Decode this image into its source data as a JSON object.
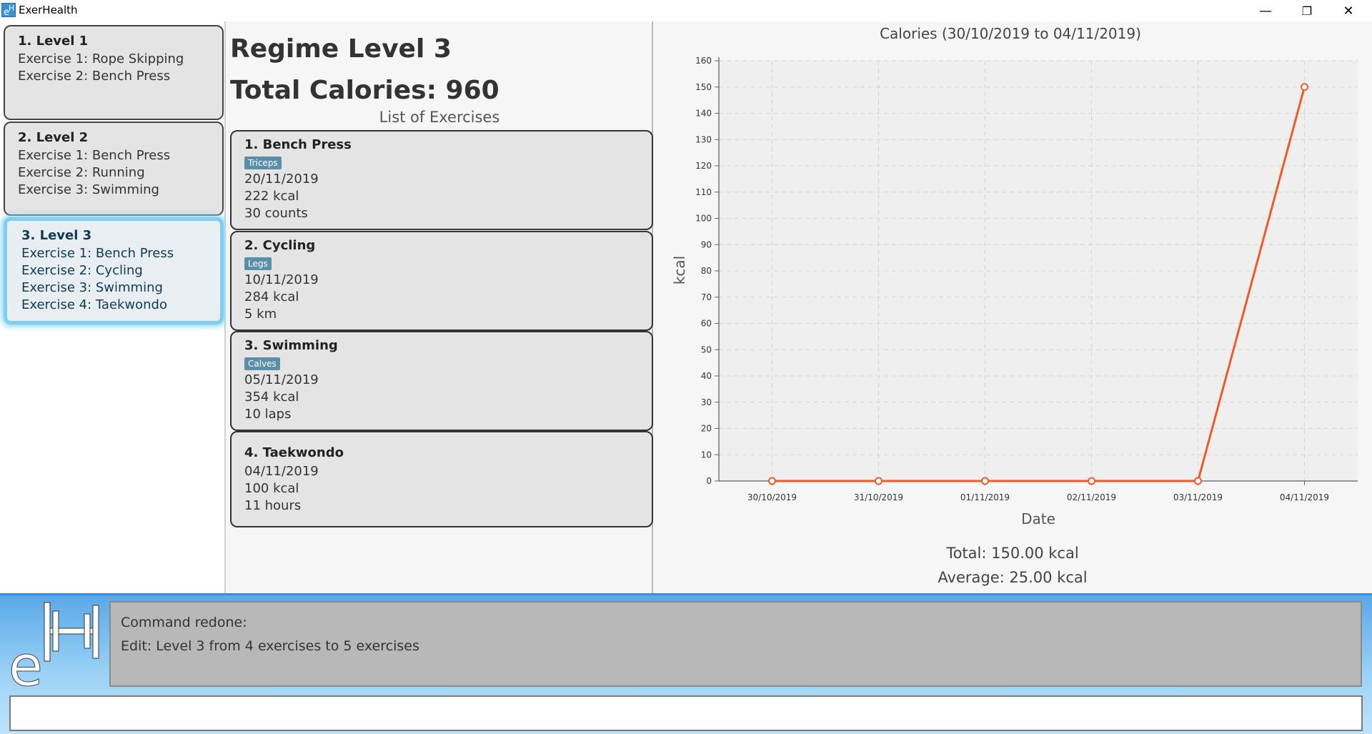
{
  "window": {
    "title": "ExerHealth",
    "minimize": "—",
    "restore": "❐",
    "close": "✕"
  },
  "regimes": [
    {
      "title": "1.  Level 1",
      "exercises": [
        "Exercise 1: Rope Skipping",
        "Exercise 2: Bench Press"
      ]
    },
    {
      "title": "2.  Level 2",
      "exercises": [
        "Exercise 1: Bench Press",
        "Exercise 2: Running",
        "Exercise 3: Swimming"
      ]
    },
    {
      "title": "3.  Level 3",
      "exercises": [
        "Exercise 1: Bench Press",
        "Exercise 2: Cycling",
        "Exercise 3: Swimming",
        "Exercise 4: Taekwondo"
      ],
      "selected": true
    }
  ],
  "detail": {
    "regime_name": "Regime Level 3",
    "total_calories": "Total Calories: 960",
    "list_header": "List of Exercises",
    "exercises": [
      {
        "title": "1.  Bench Press",
        "tag": "Triceps",
        "date": "20/11/2019",
        "calories": "222 kcal",
        "quantity": "30 counts"
      },
      {
        "title": "2.  Cycling",
        "tag": "Legs",
        "date": "10/11/2019",
        "calories": "284 kcal",
        "quantity": "5 km"
      },
      {
        "title": "3.  Swimming",
        "tag": "Calves",
        "date": "05/11/2019",
        "calories": "354 kcal",
        "quantity": "10 laps"
      },
      {
        "title": "4.  Taekwondo",
        "tag": "",
        "date": "04/11/2019",
        "calories": "100 kcal",
        "quantity": "11 hours"
      }
    ]
  },
  "chart_data": {
    "type": "line",
    "title": "Calories (30/10/2019 to 04/11/2019)",
    "xlabel": "Date",
    "ylabel": "kcal",
    "categories": [
      "30/10/2019",
      "31/10/2019",
      "01/11/2019",
      "02/11/2019",
      "03/11/2019",
      "04/11/2019"
    ],
    "series": [
      {
        "values": [
          0,
          0,
          0,
          0,
          0,
          150
        ]
      }
    ],
    "ylim": [
      0,
      160
    ],
    "ytick_step": 10,
    "grid": true,
    "color": "#f05a28"
  },
  "chart_summary": {
    "total": "Total: 150.00 kcal",
    "average": "Average: 25.00 kcal"
  },
  "result": {
    "line1": "Command redone:",
    "line2": "Edit: Level 3 from 4 exercises to 5 exercises"
  },
  "command": {
    "value": "",
    "placeholder": ""
  }
}
